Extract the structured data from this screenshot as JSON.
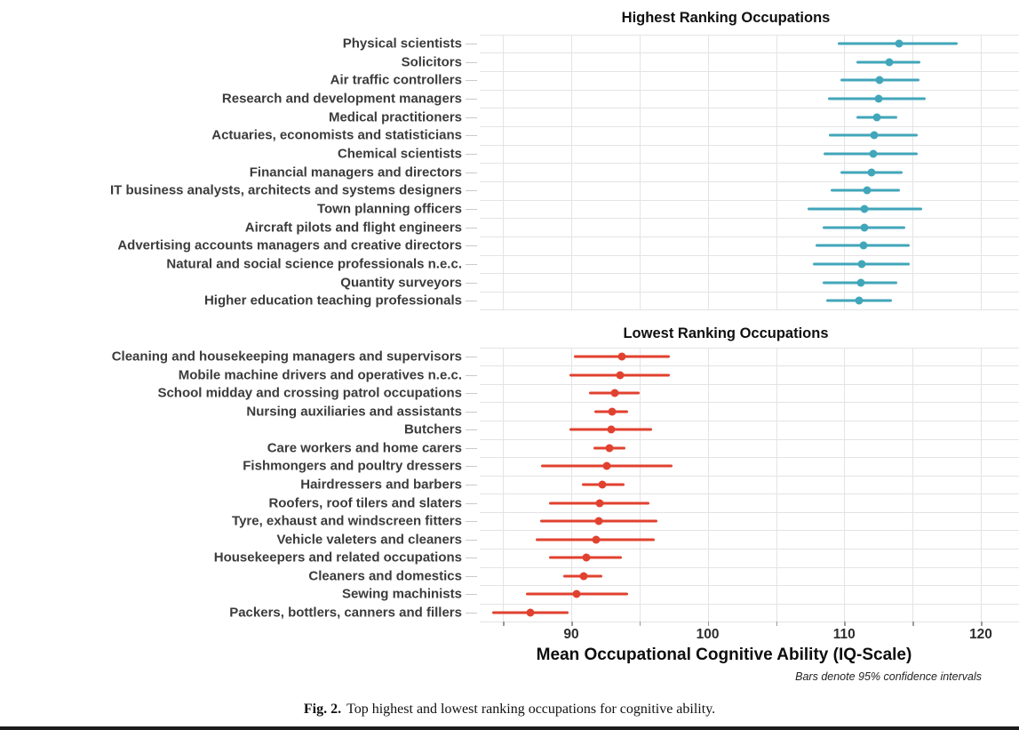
{
  "figure": {
    "caption_label": "Fig. 2.",
    "caption_text": "Top highest and lowest ranking occupations for cognitive ability."
  },
  "chart_data": {
    "type": "scatter",
    "subtype": "dot-plot-with-horizontal-ci",
    "xlabel": "Mean Occupational Cognitive Ability (IQ-Scale)",
    "footnote": "Bars denote 95% confidence intervals",
    "xlim": [
      83.3,
      122.8
    ],
    "x_ticks": [
      90,
      100,
      110,
      120
    ],
    "x_minor_tick_step": 5,
    "grid": true,
    "legend": "none",
    "panels": [
      {
        "title": "Highest Ranking Occupations",
        "color": "#41a6ba",
        "rows": [
          {
            "label": "Physical scientists",
            "mean": 114.0,
            "ci_low": 109.5,
            "ci_high": 118.3
          },
          {
            "label": "Solicitors",
            "mean": 113.3,
            "ci_low": 110.9,
            "ci_high": 115.6
          },
          {
            "label": "Air traffic controllers",
            "mean": 112.6,
            "ci_low": 109.7,
            "ci_high": 115.5
          },
          {
            "label": "Research and development managers",
            "mean": 112.5,
            "ci_low": 108.8,
            "ci_high": 116.0
          },
          {
            "label": "Medical practitioners",
            "mean": 112.4,
            "ci_low": 110.9,
            "ci_high": 113.9
          },
          {
            "label": "Actuaries, economists and statisticians",
            "mean": 112.2,
            "ci_low": 108.9,
            "ci_high": 115.4
          },
          {
            "label": "Chemical scientists",
            "mean": 112.1,
            "ci_low": 108.5,
            "ci_high": 115.4
          },
          {
            "label": "Financial managers and directors",
            "mean": 112.0,
            "ci_low": 109.7,
            "ci_high": 114.3
          },
          {
            "label": "IT business analysts, architects and systems designers",
            "mean": 111.7,
            "ci_low": 109.0,
            "ci_high": 114.1
          },
          {
            "label": "Town planning officers",
            "mean": 111.5,
            "ci_low": 107.3,
            "ci_high": 115.7
          },
          {
            "label": "Aircraft pilots and flight engineers",
            "mean": 111.5,
            "ci_low": 108.4,
            "ci_high": 114.5
          },
          {
            "label": "Advertising accounts managers and creative directors",
            "mean": 111.4,
            "ci_low": 107.9,
            "ci_high": 114.8
          },
          {
            "label": "Natural and social science professionals n.e.c.",
            "mean": 111.3,
            "ci_low": 107.7,
            "ci_high": 114.8
          },
          {
            "label": "Quantity surveyors",
            "mean": 111.2,
            "ci_low": 108.4,
            "ci_high": 113.9
          },
          {
            "label": "Higher education teaching professionals",
            "mean": 111.1,
            "ci_low": 108.7,
            "ci_high": 113.5
          }
        ]
      },
      {
        "title": "Lowest Ranking Occupations",
        "color": "#e1412f",
        "rows": [
          {
            "label": "Cleaning and housekeeping managers and supervisors",
            "mean": 93.7,
            "ci_low": 90.2,
            "ci_high": 97.2
          },
          {
            "label": "Mobile machine drivers and operatives n.e.c.",
            "mean": 93.6,
            "ci_low": 89.9,
            "ci_high": 97.2
          },
          {
            "label": "School midday and crossing patrol occupations",
            "mean": 93.2,
            "ci_low": 91.3,
            "ci_high": 95.0
          },
          {
            "label": "Nursing auxiliaries and assistants",
            "mean": 93.0,
            "ci_low": 91.7,
            "ci_high": 94.2
          },
          {
            "label": "Butchers",
            "mean": 92.9,
            "ci_low": 89.9,
            "ci_high": 95.9
          },
          {
            "label": "Care workers and home carers",
            "mean": 92.8,
            "ci_low": 91.6,
            "ci_high": 94.0
          },
          {
            "label": "Fishmongers and poultry dressers",
            "mean": 92.6,
            "ci_low": 87.8,
            "ci_high": 97.4
          },
          {
            "label": "Hairdressers and barbers",
            "mean": 92.3,
            "ci_low": 90.8,
            "ci_high": 93.9
          },
          {
            "label": "Roofers, roof tilers and slaters",
            "mean": 92.1,
            "ci_low": 88.4,
            "ci_high": 95.7
          },
          {
            "label": "Tyre, exhaust and windscreen fitters",
            "mean": 92.0,
            "ci_low": 87.7,
            "ci_high": 96.3
          },
          {
            "label": "Vehicle valeters and cleaners",
            "mean": 91.8,
            "ci_low": 87.4,
            "ci_high": 96.1
          },
          {
            "label": "Housekeepers and related occupations",
            "mean": 91.1,
            "ci_low": 88.4,
            "ci_high": 93.7
          },
          {
            "label": "Cleaners and domestics",
            "mean": 90.9,
            "ci_low": 89.4,
            "ci_high": 92.3
          },
          {
            "label": "Sewing machinists",
            "mean": 90.4,
            "ci_low": 86.7,
            "ci_high": 94.2
          },
          {
            "label": "Packers, bottlers, canners and fillers",
            "mean": 87.0,
            "ci_low": 84.2,
            "ci_high": 89.8
          }
        ]
      }
    ]
  }
}
